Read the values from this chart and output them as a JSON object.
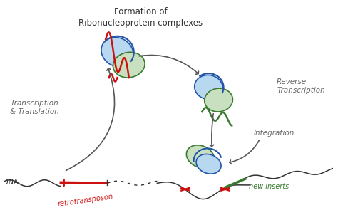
{
  "bg_color": "#ffffff",
  "title_text": "Formation of\nRibonucleoprotein complexes",
  "label_transcription": "Transcription\n& Translation",
  "label_reverse": "Reverse\nTranscription",
  "label_integration": "Integration",
  "label_dna": "DNA",
  "label_retro": "retrotransposon",
  "label_new_inserts": "new inserts",
  "blue_light": "#b8d8f0",
  "blue_dark": "#2255aa",
  "green_light": "#c8dfc0",
  "green_dark": "#3a7a30",
  "red_color": "#cc1111",
  "arrow_color": "#555555",
  "text_color": "#666666",
  "dna_color": "#333333"
}
